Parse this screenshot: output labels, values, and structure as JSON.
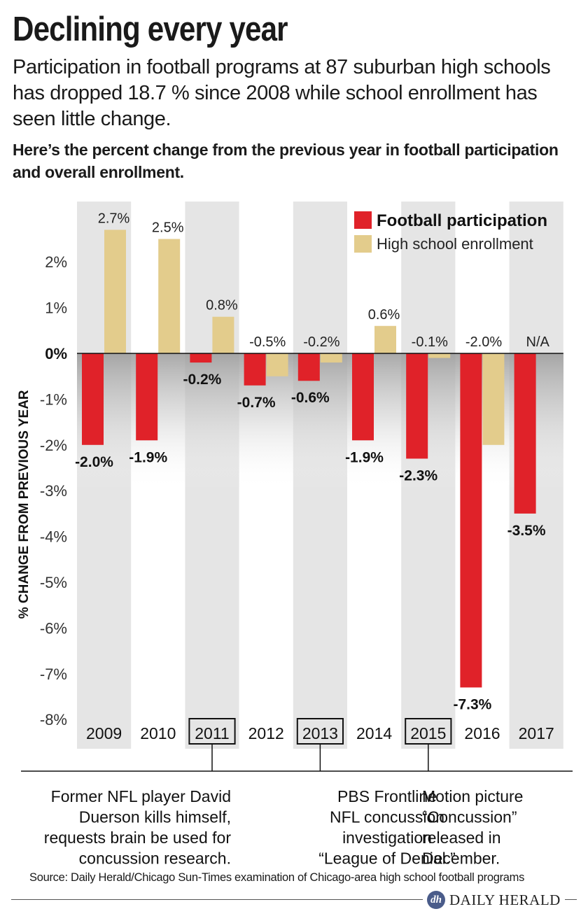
{
  "title": "Declining every year",
  "subtitle": "Participation in football programs at 87 suburban high schools has dropped 18.7 % since 2008 while school enrollment has seen little change.",
  "description": "Here’s the percent change from the previous year in football participation and overall enrollment.",
  "source": "Source: Daily Herald/Chicago Sun-Times examination of Chicago-area high school football programs",
  "logo": {
    "badge": "dh",
    "name": "DAILY HERALD"
  },
  "colors": {
    "football": "#e02229",
    "enrollment": "#e3cc8c",
    "stripe": "#e5e5e5"
  },
  "chart_data": {
    "type": "bar",
    "categories": [
      "2009",
      "2010",
      "2011",
      "2012",
      "2013",
      "2014",
      "2015",
      "2016",
      "2017"
    ],
    "highlighted_categories": [
      "2011",
      "2013",
      "2015"
    ],
    "ylabel": "% CHANGE FROM PREVIOUS YEAR",
    "ylim": [
      -8,
      3
    ],
    "yticks": [
      2,
      1,
      0,
      -1,
      -2,
      -3,
      -4,
      -5,
      -6,
      -7,
      -8
    ],
    "ytick_labels": [
      "2%",
      "1%",
      "0%",
      "-1%",
      "-2%",
      "-3%",
      "-4%",
      "-5%",
      "-6%",
      "-7%",
      "-8%"
    ],
    "legend_position": "top-right",
    "series": [
      {
        "name": "Football participation",
        "values": [
          -2.0,
          -1.9,
          -0.2,
          -0.7,
          -0.6,
          -1.9,
          -2.3,
          -7.3,
          -3.5
        ],
        "labels": [
          "-2.0%",
          "-1.9%",
          "-0.2%",
          "-0.7%",
          "-0.6%",
          "-1.9%",
          "-2.3%",
          "-7.3%",
          "-3.5%"
        ]
      },
      {
        "name": "High school enrollment",
        "values": [
          2.7,
          2.5,
          0.8,
          -0.5,
          -0.2,
          0.6,
          -0.1,
          -2.0,
          null
        ],
        "labels": [
          "2.7%",
          "2.5%",
          "0.8%",
          "-0.5%",
          "-0.2%",
          "0.6%",
          "-0.1%",
          "-2.0%",
          "N/A"
        ]
      }
    ],
    "annotations": [
      {
        "year": "2011",
        "lines": [
          "Former NFL player David",
          "Duerson kills himself,",
          "requests brain be used for",
          "concussion research."
        ]
      },
      {
        "year": "2013",
        "lines": [
          "PBS Frontline",
          "NFL concussion",
          "investigation",
          "“League of Denial.”"
        ]
      },
      {
        "year": "2015",
        "lines": [
          "Motion picture",
          "“Concussion”",
          "released in",
          "December."
        ]
      }
    ]
  }
}
